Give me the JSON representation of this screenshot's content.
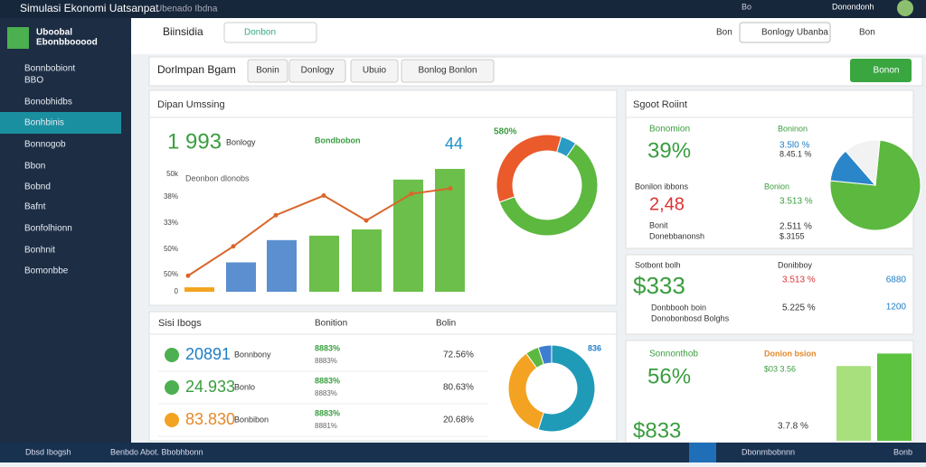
{
  "topbar": {
    "title": "Simulasi Ekonomi Uatsanpat",
    "subtitle": "Ubenado Ibdna",
    "search": "Bo",
    "user": "Donondonh"
  },
  "sidebar": {
    "brand": [
      "Uboobal",
      "Ebonbbooood"
    ],
    "items": [
      "Bonnbobiont",
      "BBO",
      "Bonobhidbs",
      "Bonhbinis",
      "Bonnogob",
      "Bbon",
      "Bobnd",
      "Bafnt",
      "Bonfolhionn",
      "Bonhnit",
      "Bomonbbe"
    ]
  },
  "header": {
    "brand": "Biinsidia",
    "search": "Donbon",
    "user1": "Bon",
    "button": "Bonlogy Ubanba",
    "user2": "Bon"
  },
  "toolbar": {
    "title": "Dorlmpan Bgam",
    "tabs": [
      "Bonin",
      "Donlogy",
      "Ubuio",
      "Bonlog Bonlon"
    ],
    "action": "Bonon"
  },
  "panel1": {
    "title": "Dipan Umssing",
    "kpi": "1 993",
    "kpi_label": "Bonlogy",
    "legend": "Bondbobon",
    "right_value": "44",
    "chart_title": "Deonbon dlonobs",
    "axis_labels": [
      "50k",
      "38%",
      "33%",
      "50%",
      "50%",
      "0"
    ],
    "ylim": [
      0,
      140
    ],
    "bars": [
      5,
      33,
      58,
      63,
      70,
      126,
      138
    ],
    "bar_colors": [
      "#f2a31f",
      "#5b8fd0",
      "#5b8fd0",
      "#6cbf4a",
      "#6cbf4a",
      "#6cbf4a",
      "#6cbf4a"
    ],
    "line": [
      18,
      51,
      86,
      108,
      80,
      110,
      116
    ],
    "line_color": "#d9662b",
    "donut_label": "580%",
    "donut": [
      60,
      35,
      5
    ],
    "donut_colors": [
      "#5cb83f",
      "#ea5a2a",
      "#2a9bc4"
    ]
  },
  "panel2": {
    "title": "Sisi Ibogs",
    "col1": "Bonition",
    "col2": "Bolin",
    "rows": [
      {
        "value": "20891",
        "label": "Bonnbony",
        "pct": "8883%",
        "sub": "8883%",
        "right": "72.56%"
      },
      {
        "value": "24.933",
        "label": "Bonlo",
        "pct": "8883%",
        "sub": "8883%",
        "right": "80.63%"
      },
      {
        "value": "83.830",
        "label": "Bonbibon",
        "pct": "8883%",
        "sub": "8881%",
        "right": "20.68%"
      }
    ],
    "donut_label": "836",
    "donut": [
      55,
      35,
      5,
      5
    ],
    "donut_colors": [
      "#1f9bb8",
      "#f3a321",
      "#5cb83f",
      "#3c7fd0"
    ]
  },
  "panel3": {
    "title": "Sgoot Roiint",
    "a_label": "Bonomion",
    "a_value": "39%",
    "b1": "Boninon",
    "b2": "3.5l0 %",
    "b3": "8.45.1 %",
    "c_label": "Bonilon ibbons",
    "c_value": "2,48",
    "c_sub1": "Bonit",
    "c_sub2": "Donebbanonsh",
    "d1": "Bonion",
    "d2": "3.513 %",
    "d3": "2.511 %",
    "d4": "$.3155",
    "pie": [
      75,
      12,
      13
    ],
    "pie_colors": [
      "#5cb83f",
      "#2a86c8",
      "#f2f2f2"
    ]
  },
  "panel4": {
    "label": "Sotbont bolh",
    "value": "$333",
    "r1": "Donibboy",
    "r2": "3.513 %",
    "r3": "5.225 %",
    "s1": "Donbbooh boin",
    "s2": "Donobonbosd Bolghs",
    "n1": "6880",
    "n2": "1200"
  },
  "panel5": {
    "label": "Sonnonthob",
    "value": "56%",
    "r1": "Donion bsion",
    "r2": "$03 3.56",
    "value2": "$833",
    "r3": "3.7.8 %",
    "bars": [
      72,
      84
    ],
    "ylim": [
      0,
      100
    ],
    "bar_colors": [
      "#a8e07e",
      "#5cc23f"
    ]
  },
  "footer": {
    "left": "Dbsd Ibogsh",
    "mid": "Benbdo Abot. Bbobhbonn",
    "right1": "Dbonmbobnnn",
    "right2": "Bonb"
  }
}
